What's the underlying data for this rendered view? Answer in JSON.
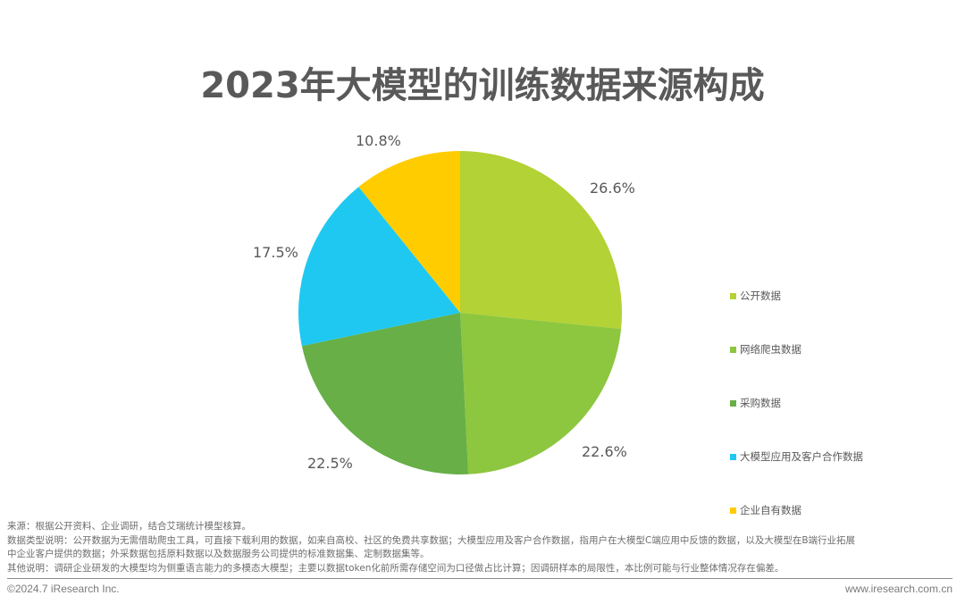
{
  "title": "2023年大模型的训练数据来源构成",
  "chart_data": {
    "type": "pie",
    "title": "2023年大模型的训练数据来源构成",
    "start_angle": "12 o'clock, clockwise",
    "categories": [
      "公开数据",
      "网络爬虫数据",
      "采购数据",
      "大模型应用及客户合作数据",
      "企业自有数据"
    ],
    "values": [
      26.6,
      22.6,
      22.5,
      17.5,
      10.8
    ],
    "labels": [
      "26.6%",
      "22.6%",
      "22.5%",
      "17.5%",
      "10.8%"
    ],
    "colors": [
      "#B2D235",
      "#8DC63F",
      "#67AF46",
      "#1FC8F0",
      "#FFCC00"
    ],
    "legend_position": "right"
  },
  "legend": {
    "items": [
      {
        "label": "公开数据",
        "color": "#B2D235"
      },
      {
        "label": "网络爬虫数据",
        "color": "#8DC63F"
      },
      {
        "label": "采购数据",
        "color": "#67AF46"
      },
      {
        "label": "大模型应用及客户合作数据",
        "color": "#1FC8F0"
      },
      {
        "label": "企业自有数据",
        "color": "#FFCC00"
      }
    ]
  },
  "notes": {
    "source": "来源：根据公开资料、企业调研，结合艾瑞统计模型核算。",
    "type_desc_line1": "数据类型说明：公开数据为无需借助爬虫工具，可直接下载利用的数据，如来自高校、社区的免费共享数据；大模型应用及客户合作数据，指用户在大模型C端应用中反馈的数据，以及大模型在B端行业拓展",
    "type_desc_line2": "中企业客户提供的数据；外采数据包括原料数据以及数据服务公司提供的标准数据集、定制数据集等。",
    "other": "其他说明：调研企业研发的大模型均为侧重语言能力的多模态大模型；主要以数据token化前所需存储空间为口径做占比计算；因调研样本的局限性，本比例可能与行业整体情况存在偏差。"
  },
  "footer": {
    "copyright": "©2024.7 iResearch Inc.",
    "website": "www.iresearch.com.cn"
  }
}
